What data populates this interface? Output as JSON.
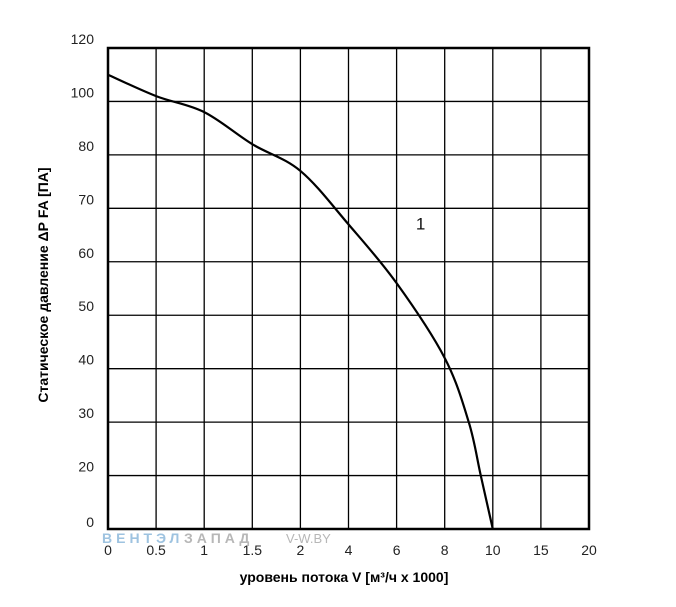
{
  "chart_data": {
    "type": "line",
    "title": "",
    "xlabel": "уровень потока V [м³/ч x 1000]",
    "ylabel": "Статическое давление ΔР FA [ПА]",
    "x_tick_labels": [
      "0",
      "0.5",
      "1",
      "1.5",
      "2",
      "4",
      "6",
      "8",
      "10",
      "15",
      "20"
    ],
    "y_tick_labels": [
      "0",
      "20",
      "30",
      "40",
      "50",
      "60",
      "70",
      "80",
      "100",
      "120"
    ],
    "grid": true,
    "series": [
      {
        "name": "1",
        "color": "#000000",
        "x": [
          0,
          0.5,
          1,
          1.5,
          2,
          4,
          6,
          8,
          9,
          9.5,
          10
        ],
        "y": [
          110,
          102,
          96,
          84,
          77,
          67,
          56,
          42,
          30,
          20,
          0
        ]
      }
    ],
    "annotations": [
      {
        "text": "1",
        "x": 7,
        "y": 66
      }
    ]
  },
  "watermark": {
    "brand_a": "ВЕНТЭЛ",
    "brand_b": "ЗАПАД",
    "site": "V-W.BY",
    "color_a": "#9ec3e0",
    "color_b": "#b7b7b7"
  }
}
